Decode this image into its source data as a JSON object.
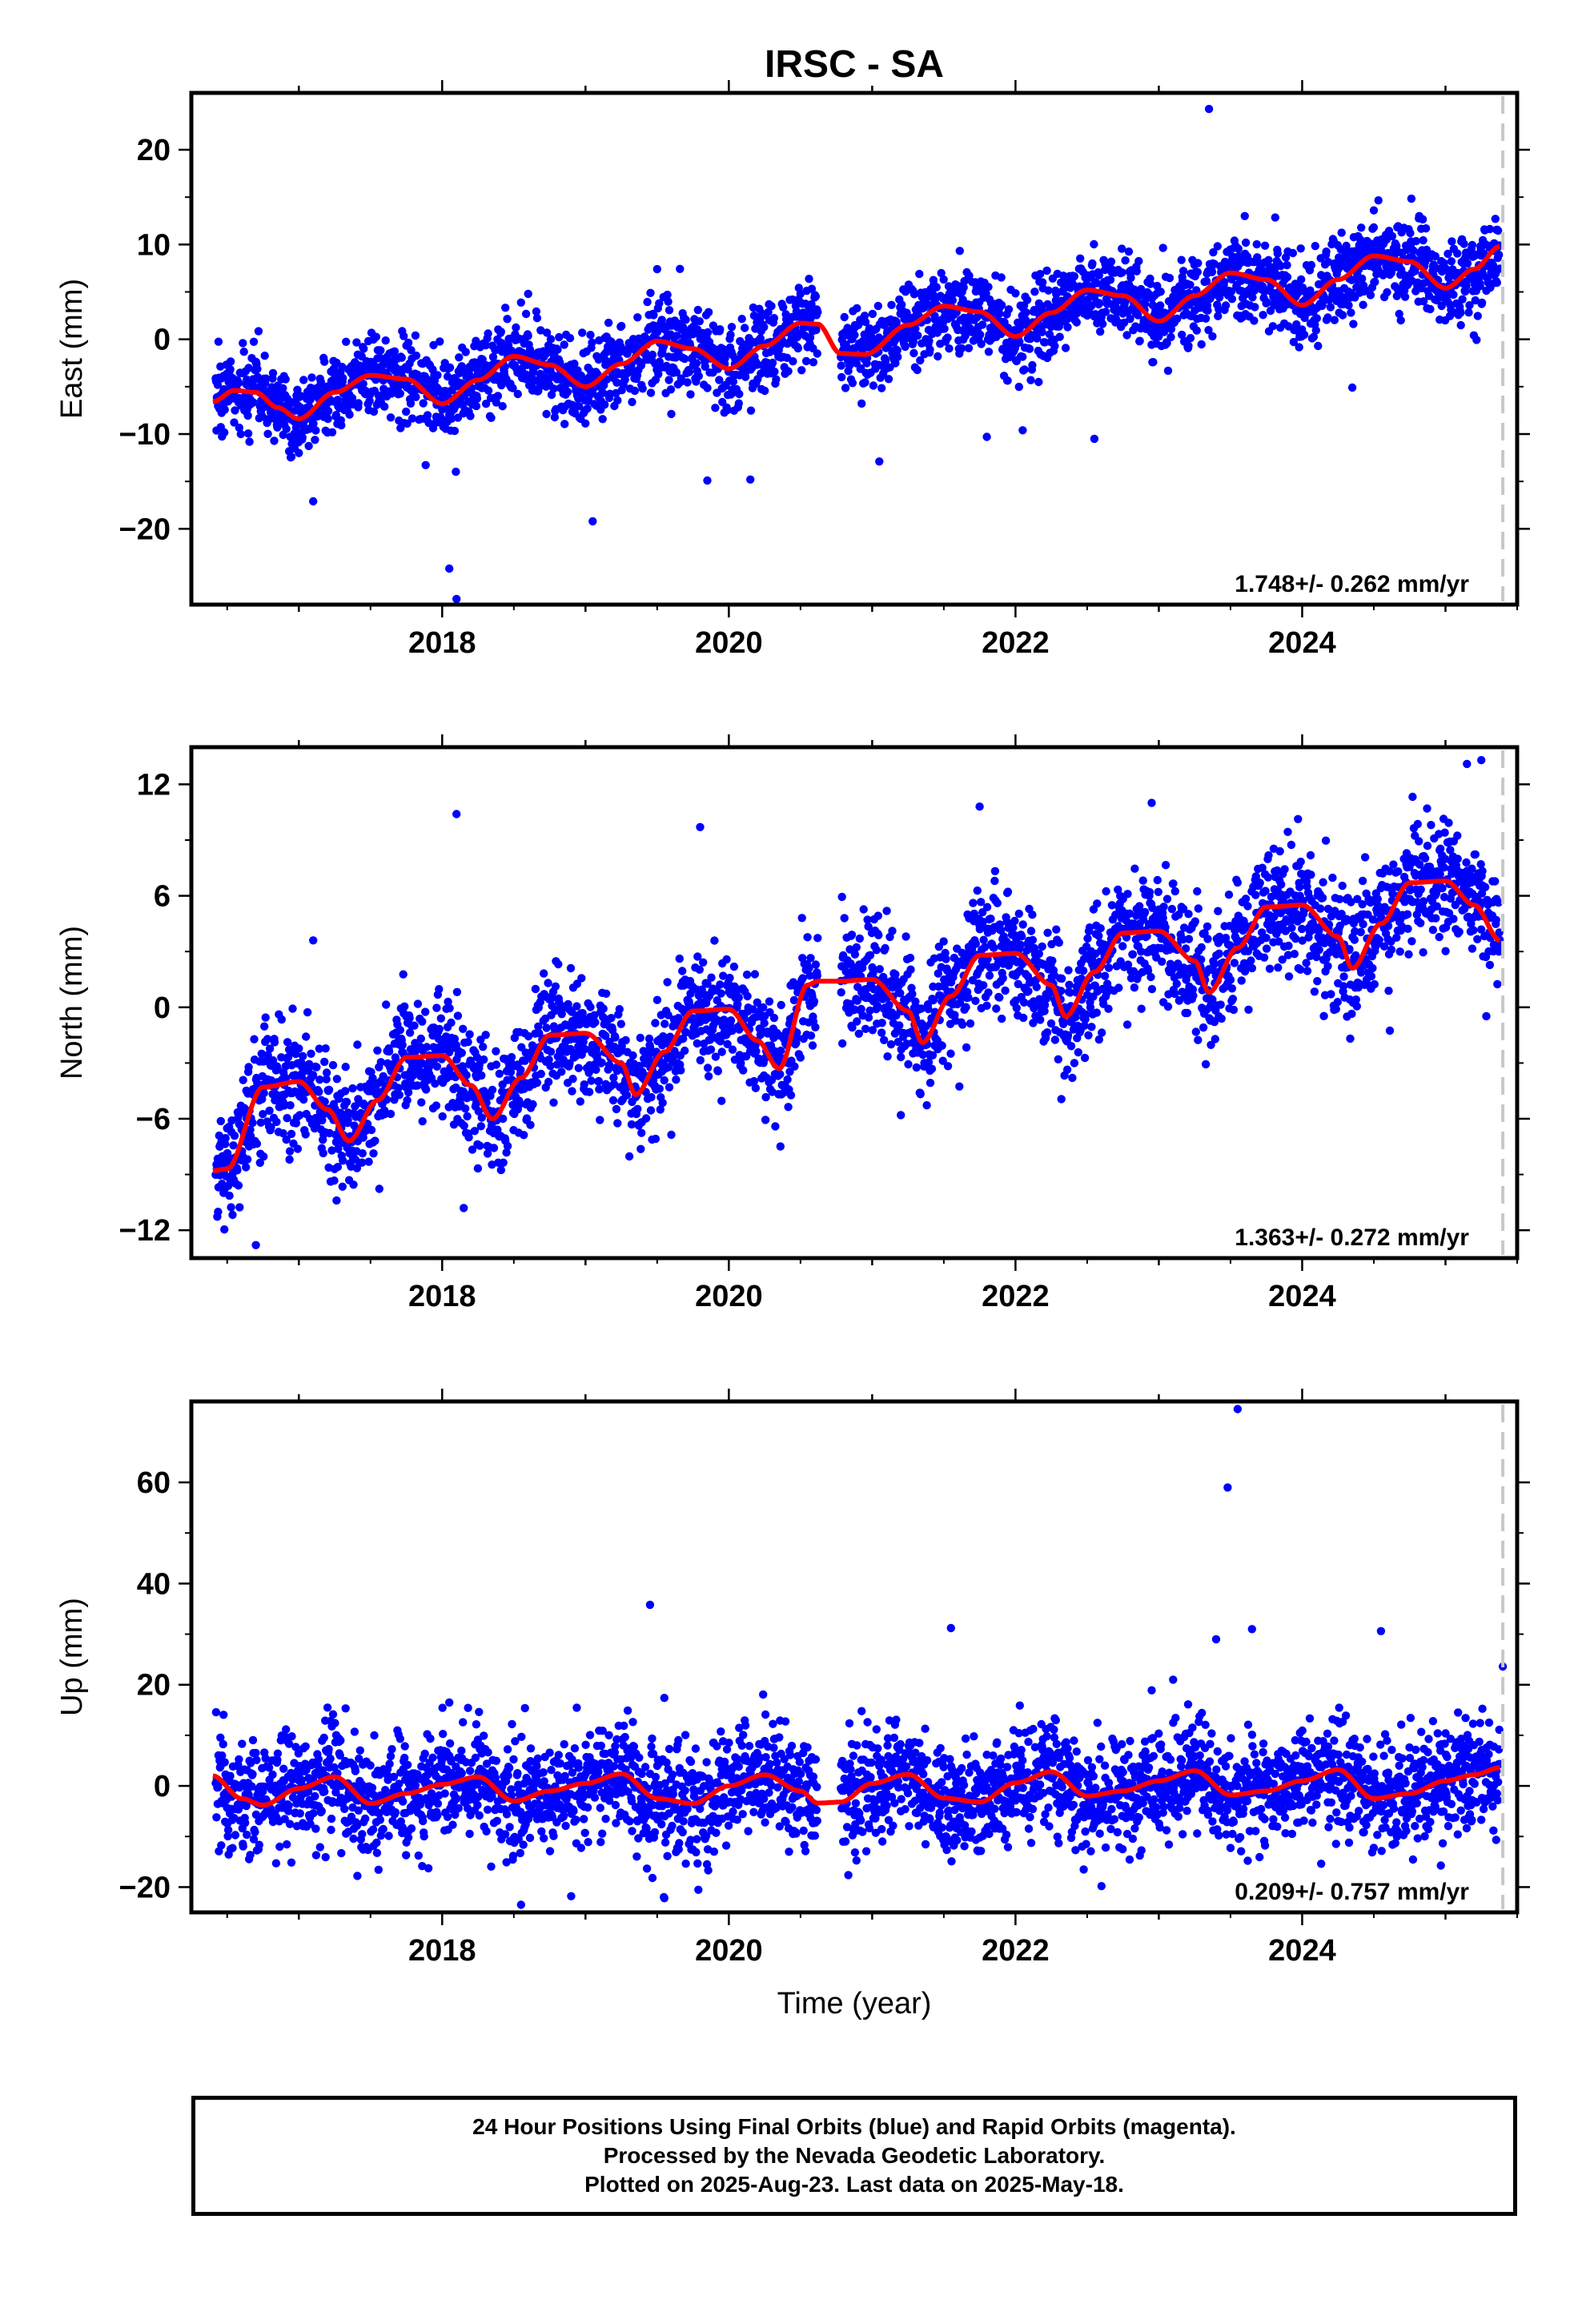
{
  "chart_data": {
    "title": "IRSC - SA",
    "x_axis": {
      "label": "Time (year)",
      "range": [
        2016.25,
        2025.5
      ],
      "ticks": [
        "2018",
        "2020",
        "2022",
        "2024"
      ]
    },
    "last_data_year": 2025.38,
    "data_gap": [
      2020.62,
      2020.78
    ],
    "colors": {
      "points": "#0000ff",
      "model": "#ff0000",
      "last_data_line": "#c8c8c8"
    },
    "panels": [
      {
        "name": "east",
        "type": "scatter",
        "ylabel": "East (mm)",
        "ylim": [
          -28,
          26
        ],
        "y_ticks": [
          "20",
          "10",
          "0",
          "-10",
          "-20"
        ],
        "velocity": "1.748+/- 0.262 mm/yr",
        "model_curve": {
          "x": [
            2016.4,
            2016.55,
            2016.7,
            2016.85,
            2017.0,
            2017.25,
            2017.5,
            2017.75,
            2018.0,
            2018.25,
            2018.5,
            2018.75,
            2019.0,
            2019.25,
            2019.5,
            2019.75,
            2020.0,
            2020.25,
            2020.5,
            2020.62,
            2020.78,
            2020.95,
            2021.25,
            2021.5,
            2021.75,
            2022.0,
            2022.25,
            2022.5,
            2022.75,
            2023.0,
            2023.25,
            2023.5,
            2023.75,
            2024.0,
            2024.25,
            2024.5,
            2024.75,
            2025.0,
            2025.2,
            2025.38
          ],
          "y": [
            -6.6,
            -5.4,
            -5.6,
            -7.2,
            -8.4,
            -5.6,
            -3.8,
            -4.2,
            -6.8,
            -4.3,
            -1.8,
            -2.7,
            -5.0,
            -2.6,
            -0.2,
            -1.0,
            -3.1,
            -0.7,
            1.7,
            1.6,
            -1.5,
            -1.6,
            1.5,
            3.5,
            2.9,
            0.3,
            2.8,
            5.2,
            4.6,
            1.9,
            4.6,
            7.0,
            6.3,
            3.6,
            6.3,
            8.8,
            8.2,
            5.4,
            7.4,
            9.8
          ]
        },
        "noise": 2.2,
        "outliers": [
          [
            2018.05,
            -24.2
          ],
          [
            2018.1,
            -27.4
          ],
          [
            2019.05,
            -19.2
          ],
          [
            2017.1,
            -17.1
          ],
          [
            2023.35,
            24.3
          ],
          [
            2024.35,
            -5.1
          ],
          [
            2021.8,
            -10.3
          ],
          [
            2022.05,
            -9.6
          ],
          [
            2022.55,
            -10.5
          ],
          [
            2021.05,
            -12.9
          ],
          [
            2019.85,
            -14.9
          ],
          [
            2020.15,
            -14.8
          ],
          [
            2018.6,
            4.8
          ],
          [
            2019.5,
            7.4
          ],
          [
            2023.6,
            13.0
          ],
          [
            2024.5,
            13.6
          ]
        ]
      },
      {
        "name": "north",
        "type": "scatter",
        "ylabel": "North (mm)",
        "ylim": [
          -13.5,
          14
        ],
        "y_ticks": [
          "12",
          "6",
          "0",
          "-6",
          "-12"
        ],
        "velocity": "1.363+/- 0.272 mm/yr",
        "model_curve": {
          "x": [
            2016.4,
            2016.5,
            2016.75,
            2017.0,
            2017.2,
            2017.35,
            2017.55,
            2017.75,
            2018.0,
            2018.2,
            2018.35,
            2018.55,
            2018.75,
            2019.0,
            2019.25,
            2019.35,
            2019.55,
            2019.75,
            2020.0,
            2020.2,
            2020.35,
            2020.55,
            2020.62,
            2020.78,
            2021.0,
            2021.25,
            2021.35,
            2021.55,
            2021.75,
            2022.0,
            2022.25,
            2022.35,
            2022.55,
            2022.75,
            2023.0,
            2023.25,
            2023.35,
            2023.55,
            2023.75,
            2024.0,
            2024.25,
            2024.35,
            2024.55,
            2024.75,
            2025.0,
            2025.2,
            2025.38
          ],
          "y": [
            -8.8,
            -8.7,
            -4.3,
            -4.0,
            -5.5,
            -7.2,
            -5.0,
            -2.7,
            -2.6,
            -4.2,
            -6.0,
            -3.8,
            -1.5,
            -1.4,
            -3.0,
            -4.7,
            -2.4,
            -0.2,
            -0.1,
            -1.8,
            -3.3,
            1.2,
            1.4,
            1.4,
            1.5,
            -0.2,
            -1.9,
            0.6,
            2.8,
            2.9,
            1.2,
            -0.5,
            1.9,
            4.0,
            4.1,
            2.5,
            0.8,
            3.2,
            5.4,
            5.5,
            3.8,
            2.1,
            4.5,
            6.7,
            6.8,
            5.5,
            3.6
          ]
        },
        "noise": 1.6,
        "outliers": [
          [
            2016.7,
            -12.8
          ],
          [
            2018.1,
            10.4
          ],
          [
            2019.8,
            9.7
          ],
          [
            2021.75,
            10.8
          ],
          [
            2025.15,
            13.1
          ],
          [
            2025.25,
            13.3
          ],
          [
            2017.1,
            3.6
          ],
          [
            2018.15,
            -10.8
          ],
          [
            2022.95,
            11.0
          ],
          [
            2021.2,
            -5.8
          ]
        ]
      },
      {
        "name": "up",
        "type": "scatter",
        "ylabel": "Up (mm)",
        "ylim": [
          -25,
          76
        ],
        "y_ticks": [
          "60",
          "40",
          "20",
          "0",
          "-20"
        ],
        "velocity": "0.209+/- 0.757 mm/yr",
        "model_curve": {
          "x": [
            2016.4,
            2016.6,
            2016.75,
            2017.0,
            2017.25,
            2017.5,
            2017.75,
            2018.0,
            2018.25,
            2018.5,
            2018.75,
            2019.0,
            2019.25,
            2019.5,
            2019.75,
            2020.0,
            2020.25,
            2020.5,
            2020.62,
            2020.78,
            2021.0,
            2021.25,
            2021.5,
            2021.75,
            2022.0,
            2022.25,
            2022.5,
            2022.75,
            2023.0,
            2023.25,
            2023.5,
            2023.75,
            2024.0,
            2024.25,
            2024.5,
            2024.75,
            2025.0,
            2025.2,
            2025.38
          ],
          "y": [
            2.0,
            -2.5,
            -3.8,
            -0.5,
            1.8,
            -3.5,
            -1.5,
            0.3,
            1.8,
            -3.0,
            -1.0,
            0.5,
            2.4,
            -2.5,
            -3.5,
            0.0,
            2.2,
            -1.0,
            -3.4,
            -3.2,
            0.5,
            2.3,
            -2.4,
            -3.2,
            0.6,
            2.8,
            -2.0,
            -1.0,
            1.0,
            3.0,
            -1.8,
            -1.0,
            1.0,
            3.2,
            -2.5,
            -1.5,
            1.0,
            2.2,
            3.6
          ]
        },
        "noise": 5.5,
        "outliers": [
          [
            2023.55,
            74.5
          ],
          [
            2023.48,
            59.0
          ],
          [
            2023.65,
            31.0
          ],
          [
            2019.45,
            35.8
          ],
          [
            2021.55,
            31.2
          ],
          [
            2024.55,
            30.6
          ],
          [
            2023.4,
            29.0
          ],
          [
            2025.4,
            23.6
          ],
          [
            2023.1,
            21.0
          ],
          [
            2019.55,
            17.4
          ],
          [
            2018.05,
            16.5
          ],
          [
            2022.95,
            18.9
          ],
          [
            2022.6,
            -19.8
          ],
          [
            2018.55,
            -23.5
          ],
          [
            2019.55,
            -22.2
          ],
          [
            2018.9,
            -21.8
          ]
        ]
      }
    ]
  },
  "footer": {
    "line1": "24 Hour Positions Using Final Orbits (blue) and Rapid Orbits (magenta).",
    "line2": "Processed by the Nevada Geodetic Laboratory.",
    "line3": "Plotted on 2025-Aug-23. Last data on 2025-May-18."
  }
}
